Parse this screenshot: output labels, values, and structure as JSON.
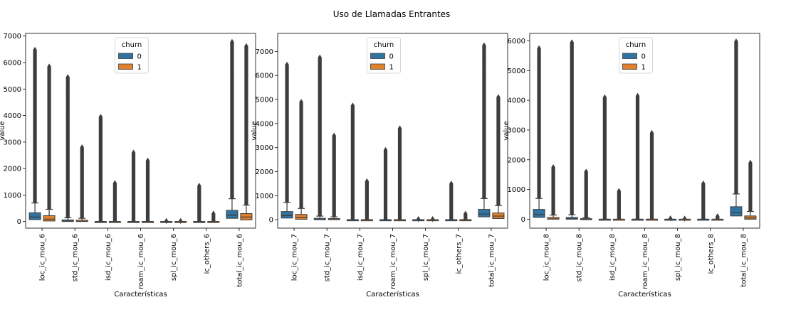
{
  "figure": {
    "title": "Uso de Llamadas Entrantes"
  },
  "legend_colors": {
    "0": "#3274a1",
    "1": "#e1812c"
  },
  "chart_data": [
    {
      "type": "box",
      "xlabel": "Características",
      "ylabel": "value",
      "ylim": [
        -250,
        7100
      ],
      "yticks": [
        0,
        1000,
        2000,
        3000,
        4000,
        5000,
        6000,
        7000
      ],
      "legend": {
        "title": "churn",
        "entries": [
          "0",
          "1"
        ],
        "placement": "top-center"
      },
      "categories": [
        "loc_ic_mou_6",
        "std_ic_mou_6",
        "isd_ic_mou_6",
        "roam_ic_mou_6",
        "spl_ic_mou_6",
        "ic_others_6",
        "total_ic_mou_6"
      ],
      "series": [
        {
          "name": "0",
          "boxes": [
            {
              "q1": 70,
              "median": 170,
              "q3": 330,
              "whisker_high": 700,
              "outlier_max": 6480,
              "outliers": [
                4750,
                4600
              ]
            },
            {
              "q1": 0,
              "median": 15,
              "q3": 60,
              "whisker_high": 140,
              "outlier_max": 5450,
              "outliers": [
                4850,
                3950
              ]
            },
            {
              "q1": 0,
              "median": 0,
              "q3": 0,
              "whisker_high": 0,
              "outlier_max": 3950,
              "outliers": []
            },
            {
              "q1": 0,
              "median": 0,
              "q3": 0,
              "whisker_high": 0,
              "outlier_max": 2600,
              "outliers": []
            },
            {
              "q1": 0,
              "median": 0,
              "q3": 0,
              "whisker_high": 0,
              "outlier_max": 20,
              "outliers": []
            },
            {
              "q1": 0,
              "median": 0,
              "q3": 0,
              "whisker_high": 0,
              "outlier_max": 1350,
              "outliers": []
            },
            {
              "q1": 120,
              "median": 240,
              "q3": 420,
              "whisker_high": 860,
              "outlier_max": 6780,
              "outliers": [
                5500,
                5300
              ]
            }
          ]
        },
        {
          "name": "1",
          "boxes": [
            {
              "q1": 20,
              "median": 90,
              "q3": 220,
              "whisker_high": 460,
              "outlier_max": 5850,
              "outliers": [
                3500
              ]
            },
            {
              "q1": 0,
              "median": 10,
              "q3": 50,
              "whisker_high": 120,
              "outlier_max": 2800,
              "outliers": []
            },
            {
              "q1": 0,
              "median": 0,
              "q3": 0,
              "whisker_high": 0,
              "outlier_max": 1450,
              "outliers": []
            },
            {
              "q1": 0,
              "median": 0,
              "q3": 0,
              "whisker_high": 0,
              "outlier_max": 2300,
              "outliers": []
            },
            {
              "q1": 0,
              "median": 0,
              "q3": 0,
              "whisker_high": 0,
              "outlier_max": 20,
              "outliers": []
            },
            {
              "q1": 0,
              "median": 0,
              "q3": 0,
              "whisker_high": 0,
              "outlier_max": 300,
              "outliers": []
            },
            {
              "q1": 60,
              "median": 170,
              "q3": 300,
              "whisker_high": 620,
              "outlier_max": 6620,
              "outliers": [
                3500
              ]
            }
          ]
        }
      ]
    },
    {
      "type": "box",
      "xlabel": "Características",
      "ylabel": "value",
      "ylim": [
        -350,
        7750
      ],
      "yticks": [
        0,
        1000,
        2000,
        3000,
        4000,
        5000,
        6000,
        7000
      ],
      "legend": {
        "title": "churn",
        "entries": [
          "0",
          "1"
        ],
        "placement": "top-center"
      },
      "categories": [
        "loc_ic_mou_7",
        "std_ic_mou_7",
        "isd_ic_mou_7",
        "roam_ic_mou_7",
        "spl_ic_mou_7",
        "ic_others_7",
        "total_ic_mou_7"
      ],
      "series": [
        {
          "name": "0",
          "boxes": [
            {
              "q1": 70,
              "median": 170,
              "q3": 340,
              "whisker_high": 720,
              "outlier_max": 6450,
              "outliers": [
                5400,
                5300
              ]
            },
            {
              "q1": 0,
              "median": 15,
              "q3": 60,
              "whisker_high": 150,
              "outlier_max": 6750,
              "outliers": [
                5800,
                4300
              ]
            },
            {
              "q1": 0,
              "median": 0,
              "q3": 0,
              "whisker_high": 0,
              "outlier_max": 4750,
              "outliers": [
                3650
              ]
            },
            {
              "q1": 0,
              "median": 0,
              "q3": 0,
              "whisker_high": 0,
              "outlier_max": 2900,
              "outliers": []
            },
            {
              "q1": 0,
              "median": 0,
              "q3": 0,
              "whisker_high": 0,
              "outlier_max": 30,
              "outliers": []
            },
            {
              "q1": 0,
              "median": 0,
              "q3": 0,
              "whisker_high": 0,
              "outlier_max": 1500,
              "outliers": []
            },
            {
              "q1": 120,
              "median": 240,
              "q3": 430,
              "whisker_high": 880,
              "outlier_max": 7250,
              "outliers": [
                6900,
                6550,
                5900
              ]
            }
          ]
        },
        {
          "name": "1",
          "boxes": [
            {
              "q1": 20,
              "median": 90,
              "q3": 220,
              "whisker_high": 470,
              "outlier_max": 4900,
              "outliers": []
            },
            {
              "q1": 0,
              "median": 10,
              "q3": 50,
              "whisker_high": 120,
              "outlier_max": 3500,
              "outliers": []
            },
            {
              "q1": 0,
              "median": 0,
              "q3": 0,
              "whisker_high": 0,
              "outlier_max": 1600,
              "outliers": []
            },
            {
              "q1": 0,
              "median": 0,
              "q3": 0,
              "whisker_high": 0,
              "outlier_max": 3800,
              "outliers": [
                2600
              ]
            },
            {
              "q1": 0,
              "median": 0,
              "q3": 0,
              "whisker_high": 0,
              "outlier_max": 30,
              "outliers": []
            },
            {
              "q1": 0,
              "median": 0,
              "q3": 0,
              "whisker_high": 0,
              "outlier_max": 250,
              "outliers": []
            },
            {
              "q1": 50,
              "median": 150,
              "q3": 280,
              "whisker_high": 590,
              "outlier_max": 5100,
              "outliers": [
                3500
              ]
            }
          ]
        }
      ]
    },
    {
      "type": "box",
      "xlabel": "Características",
      "ylabel": "value",
      "ylim": [
        -300,
        6250
      ],
      "yticks": [
        0,
        1000,
        2000,
        3000,
        4000,
        5000,
        6000
      ],
      "legend": {
        "title": "churn",
        "entries": [
          "0",
          "1"
        ],
        "placement": "top-center"
      },
      "categories": [
        "loc_ic_mou_8",
        "std_ic_mou_8",
        "isd_ic_mou_8",
        "roam_ic_mou_8",
        "spl_ic_mou_8",
        "ic_others_8",
        "total_ic_mou_8"
      ],
      "series": [
        {
          "name": "0",
          "boxes": [
            {
              "q1": 60,
              "median": 160,
              "q3": 330,
              "whisker_high": 700,
              "outlier_max": 5750,
              "outliers": [
                5250,
                4650
              ]
            },
            {
              "q1": 0,
              "median": 15,
              "q3": 60,
              "whisker_high": 150,
              "outlier_max": 5950,
              "outliers": [
                4600,
                4350
              ]
            },
            {
              "q1": 0,
              "median": 0,
              "q3": 0,
              "whisker_high": 0,
              "outlier_max": 4100,
              "outliers": [
                3450
              ]
            },
            {
              "q1": 0,
              "median": 0,
              "q3": 0,
              "whisker_high": 0,
              "outlier_max": 4150,
              "outliers": [
                2450
              ]
            },
            {
              "q1": 0,
              "median": 0,
              "q3": 0,
              "whisker_high": 0,
              "outlier_max": 30,
              "outliers": []
            },
            {
              "q1": 0,
              "median": 0,
              "q3": 0,
              "whisker_high": 0,
              "outlier_max": 1200,
              "outliers": []
            },
            {
              "q1": 110,
              "median": 230,
              "q3": 420,
              "whisker_high": 850,
              "outlier_max": 5980,
              "outliers": [
                5800,
                5300
              ]
            }
          ]
        },
        {
          "name": "1",
          "boxes": [
            {
              "q1": 0,
              "median": 10,
              "q3": 60,
              "whisker_high": 140,
              "outlier_max": 1750,
              "outliers": []
            },
            {
              "q1": 0,
              "median": 0,
              "q3": 20,
              "whisker_high": 50,
              "outlier_max": 1600,
              "outliers": []
            },
            {
              "q1": 0,
              "median": 0,
              "q3": 0,
              "whisker_high": 0,
              "outlier_max": 950,
              "outliers": []
            },
            {
              "q1": 0,
              "median": 0,
              "q3": 0,
              "whisker_high": 0,
              "outlier_max": 2900,
              "outliers": [
                2300
              ]
            },
            {
              "q1": 0,
              "median": 0,
              "q3": 0,
              "whisker_high": 0,
              "outlier_max": 20,
              "outliers": []
            },
            {
              "q1": 0,
              "median": 0,
              "q3": 0,
              "whisker_high": 0,
              "outlier_max": 100,
              "outliers": []
            },
            {
              "q1": 0,
              "median": 40,
              "q3": 110,
              "whisker_high": 260,
              "outlier_max": 1900,
              "outliers": []
            }
          ]
        }
      ]
    }
  ]
}
